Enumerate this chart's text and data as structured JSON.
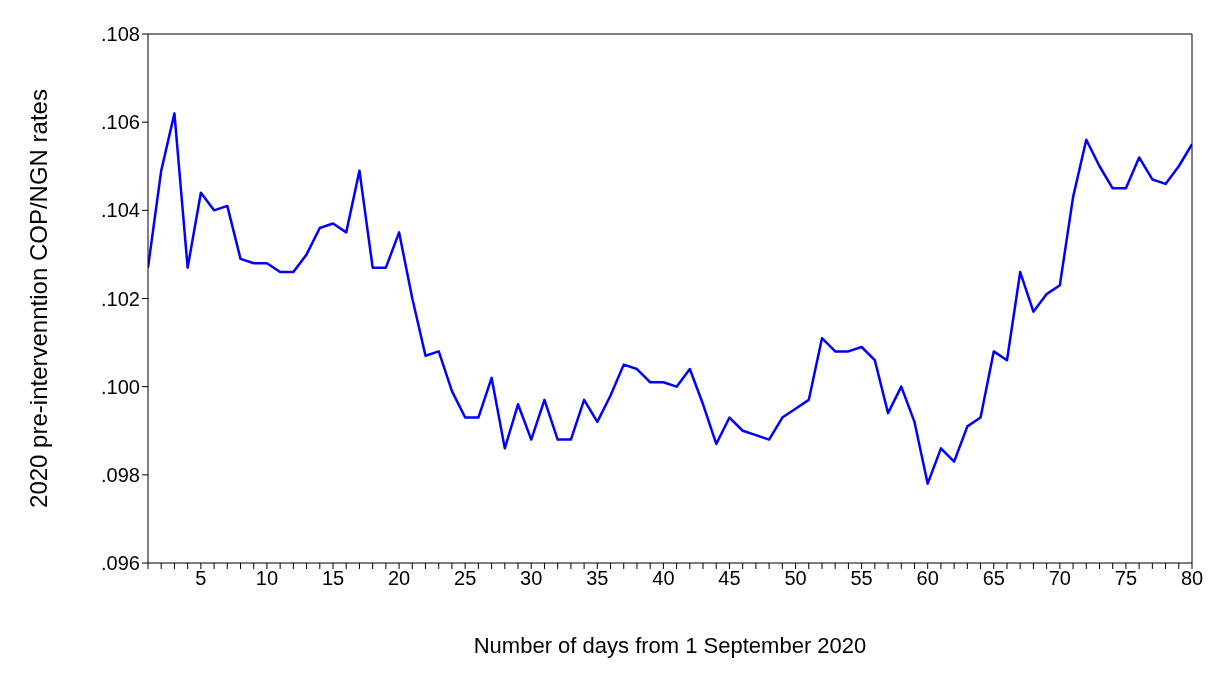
{
  "chart_data": {
    "type": "line",
    "xlabel": "Number of days from 1 September 2020",
    "ylabel": "2020 pre-intervenntion COP/NGN rates",
    "x": [
      1,
      2,
      3,
      4,
      5,
      6,
      7,
      8,
      9,
      10,
      11,
      12,
      13,
      14,
      15,
      16,
      17,
      18,
      19,
      20,
      21,
      22,
      23,
      24,
      25,
      26,
      27,
      28,
      29,
      30,
      31,
      32,
      33,
      34,
      35,
      36,
      37,
      38,
      39,
      40,
      41,
      42,
      43,
      44,
      45,
      46,
      47,
      48,
      49,
      50,
      51,
      52,
      53,
      54,
      55,
      56,
      57,
      58,
      59,
      60,
      61,
      62,
      63,
      64,
      65,
      66,
      67,
      68,
      69,
      70,
      71,
      72,
      73,
      74,
      75,
      76,
      77,
      78,
      79,
      80
    ],
    "series": [
      {
        "color": "#0000ff",
        "values": [
          0.1027,
          0.1049,
          0.1062,
          0.1027,
          0.1044,
          0.104,
          0.1041,
          0.1029,
          0.1028,
          0.1028,
          0.1026,
          0.1026,
          0.103,
          0.1036,
          0.1037,
          0.1035,
          0.1049,
          0.1027,
          0.1027,
          0.1035,
          0.102,
          0.1007,
          0.1008,
          0.0999,
          0.0993,
          0.0993,
          0.1002,
          0.0986,
          0.0996,
          0.0988,
          0.0997,
          0.0988,
          0.0988,
          0.0997,
          0.0992,
          0.0998,
          0.1005,
          0.1004,
          0.1001,
          0.1001,
          0.1,
          0.1004,
          0.0996,
          0.0987,
          0.0993,
          0.099,
          0.0989,
          0.0988,
          0.0993,
          0.0995,
          0.0997,
          0.1011,
          0.1008,
          0.1008,
          0.1009,
          0.1006,
          0.0994,
          0.1,
          0.0992,
          0.0978,
          0.0986,
          0.0983,
          0.0991,
          0.0993,
          0.1008,
          0.1006,
          0.1026,
          0.1017,
          0.1021,
          0.1023,
          0.1043,
          0.1056,
          0.105,
          0.1045,
          0.1045,
          0.1052,
          0.1047,
          0.1046,
          0.105,
          0.1055
        ]
      }
    ],
    "xlim": [
      1,
      80
    ],
    "xticks": [
      {
        "value": 1,
        "label": null
      },
      {
        "value": 2,
        "label": null
      },
      {
        "value": 3,
        "label": null
      },
      {
        "value": 4,
        "label": null
      },
      5,
      {
        "value": 6,
        "label": null
      },
      {
        "value": 7,
        "label": null
      },
      {
        "value": 8,
        "label": null
      },
      {
        "value": 9,
        "label": null
      },
      10,
      {
        "value": 11,
        "label": null
      },
      {
        "value": 12,
        "label": null
      },
      {
        "value": 13,
        "label": null
      },
      {
        "value": 14,
        "label": null
      },
      15,
      {
        "value": 16,
        "label": null
      },
      {
        "value": 17,
        "label": null
      },
      {
        "value": 18,
        "label": null
      },
      {
        "value": 19,
        "label": null
      },
      20,
      {
        "value": 21,
        "label": null
      },
      {
        "value": 22,
        "label": null
      },
      {
        "value": 23,
        "label": null
      },
      {
        "value": 24,
        "label": null
      },
      25,
      {
        "value": 26,
        "label": null
      },
      {
        "value": 27,
        "label": null
      },
      {
        "value": 28,
        "label": null
      },
      {
        "value": 29,
        "label": null
      },
      30,
      {
        "value": 31,
        "label": null
      },
      {
        "value": 32,
        "label": null
      },
      {
        "value": 33,
        "label": null
      },
      {
        "value": 34,
        "label": null
      },
      35,
      {
        "value": 36,
        "label": null
      },
      {
        "value": 37,
        "label": null
      },
      {
        "value": 38,
        "label": null
      },
      {
        "value": 39,
        "label": null
      },
      40,
      {
        "value": 41,
        "label": null
      },
      {
        "value": 42,
        "label": null
      },
      {
        "value": 43,
        "label": null
      },
      {
        "value": 44,
        "label": null
      },
      45,
      {
        "value": 46,
        "label": null
      },
      {
        "value": 47,
        "label": null
      },
      {
        "value": 48,
        "label": null
      },
      {
        "value": 49,
        "label": null
      },
      50,
      {
        "value": 51,
        "label": null
      },
      {
        "value": 52,
        "label": null
      },
      {
        "value": 53,
        "label": null
      },
      {
        "value": 54,
        "label": null
      },
      55,
      {
        "value": 56,
        "label": null
      },
      {
        "value": 57,
        "label": null
      },
      {
        "value": 58,
        "label": null
      },
      {
        "value": 59,
        "label": null
      },
      60,
      {
        "value": 61,
        "label": null
      },
      {
        "value": 62,
        "label": null
      },
      {
        "value": 63,
        "label": null
      },
      {
        "value": 64,
        "label": null
      },
      65,
      {
        "value": 66,
        "label": null
      },
      {
        "value": 67,
        "label": null
      },
      {
        "value": 68,
        "label": null
      },
      {
        "value": 69,
        "label": null
      },
      70,
      {
        "value": 71,
        "label": null
      },
      {
        "value": 72,
        "label": null
      },
      {
        "value": 73,
        "label": null
      },
      {
        "value": 74,
        "label": null
      },
      75,
      {
        "value": 76,
        "label": null
      },
      {
        "value": 77,
        "label": null
      },
      {
        "value": 78,
        "label": null
      },
      {
        "value": 79,
        "label": null
      },
      80
    ],
    "ylim": [
      0.096,
      0.108
    ],
    "yticks": [
      {
        "value": 0.096,
        "label": ".096"
      },
      {
        "value": 0.098,
        "label": ".098"
      },
      {
        "value": 0.1,
        "label": ".100"
      },
      {
        "value": 0.102,
        "label": ".102"
      },
      {
        "value": 0.104,
        "label": ".104"
      },
      {
        "value": 0.106,
        "label": ".106"
      },
      {
        "value": 0.108,
        "label": ".108"
      }
    ],
    "grid": false,
    "legend": false,
    "marker": "none",
    "line_style": "solid"
  }
}
